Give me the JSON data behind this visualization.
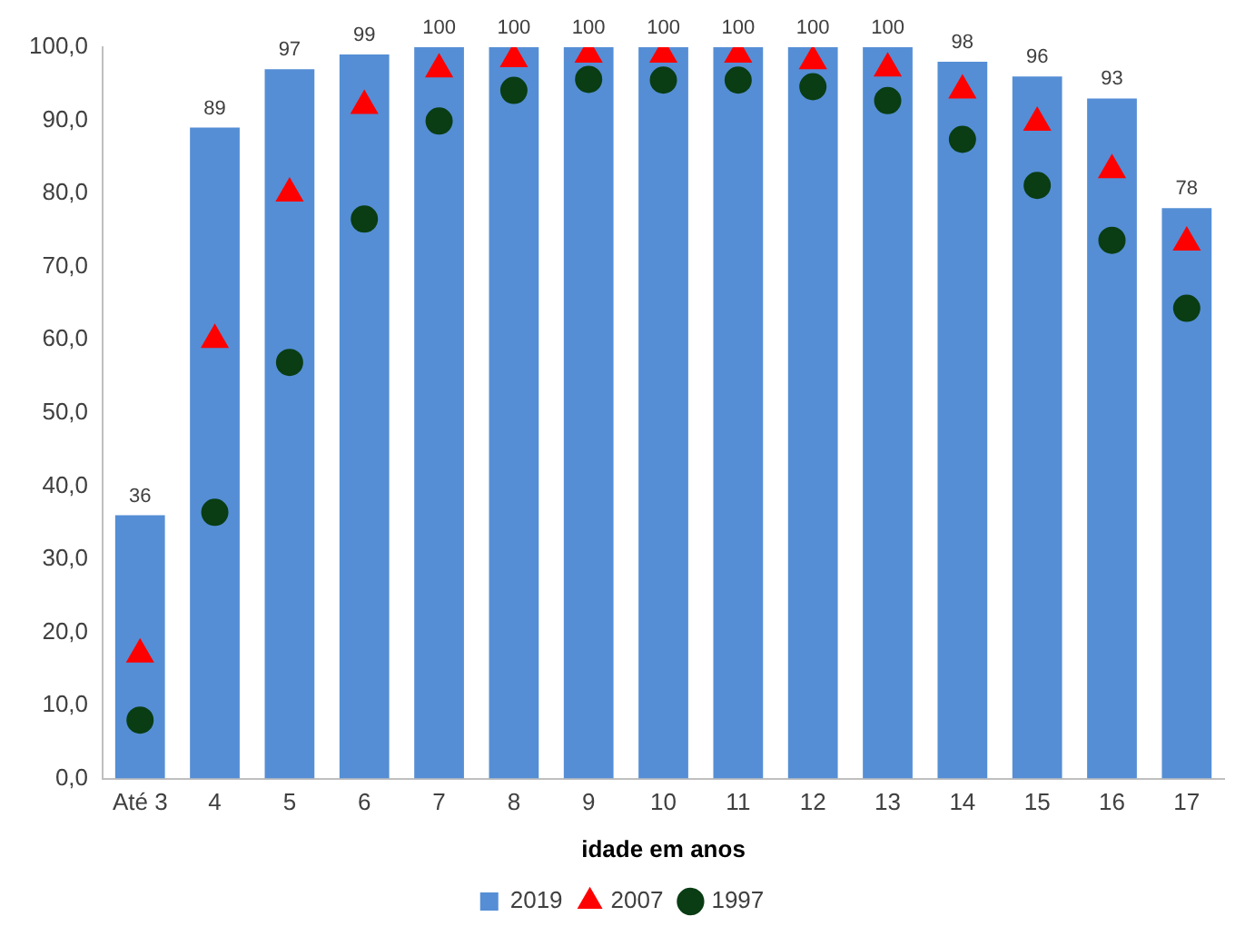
{
  "chart_data": {
    "type": "bar",
    "xlabel": "idade em anos",
    "categories": [
      "Até 3",
      "4",
      "5",
      "6",
      "7",
      "8",
      "9",
      "10",
      "11",
      "12",
      "13",
      "14",
      "15",
      "16",
      "17"
    ],
    "ylim": [
      0,
      100
    ],
    "yticks": [
      {
        "value": 0,
        "label": "0,0"
      },
      {
        "value": 10,
        "label": "10,0"
      },
      {
        "value": 20,
        "label": "20,0"
      },
      {
        "value": 30,
        "label": "30,0"
      },
      {
        "value": 40,
        "label": "40,0"
      },
      {
        "value": 50,
        "label": "50,0"
      },
      {
        "value": 60,
        "label": "60,0"
      },
      {
        "value": 70,
        "label": "70,0"
      },
      {
        "value": 80,
        "label": "80,0"
      },
      {
        "value": 90,
        "label": "90,0"
      },
      {
        "value": 100,
        "label": "100,0"
      }
    ],
    "grid": false,
    "legend": "bottom",
    "series": [
      {
        "name": "2019",
        "color": "#558ed5",
        "values": [
          36,
          89,
          97,
          99,
          100,
          100,
          100,
          100,
          100,
          100,
          100,
          98,
          96,
          93,
          78
        ],
        "value_labels": [
          "36",
          "89",
          "97",
          "99",
          "100",
          "100",
          "100",
          "100",
          "100",
          "100",
          "100",
          "98",
          "96",
          "93",
          "78"
        ]
      },
      {
        "name": "2007",
        "type": "scatter",
        "marker": "triangle",
        "color": "#ff0000",
        "x": [
          "Até 3",
          "4",
          "5",
          "6",
          "7",
          "8",
          "9",
          "10",
          "11",
          "12",
          "13",
          "14",
          "15",
          "16",
          "17"
        ],
        "values": [
          17,
          60,
          80,
          92,
          97,
          98.4,
          99,
          99,
          99,
          98.1,
          97.1,
          94.1,
          89.7,
          83.2,
          73.3
        ]
      },
      {
        "name": "1997",
        "type": "scatter",
        "marker": "circle",
        "color": "#0a3d14",
        "x": [
          "Até 3",
          "4",
          "5",
          "6",
          "7",
          "8",
          "9",
          "10",
          "11",
          "12",
          "13",
          "14",
          "15",
          "16",
          "17"
        ],
        "values": [
          8,
          36.4,
          56.9,
          76.5,
          89.9,
          94.1,
          95.6,
          95.5,
          95.5,
          94.6,
          92.7,
          87.4,
          81.1,
          73.6,
          64.3
        ]
      }
    ]
  }
}
